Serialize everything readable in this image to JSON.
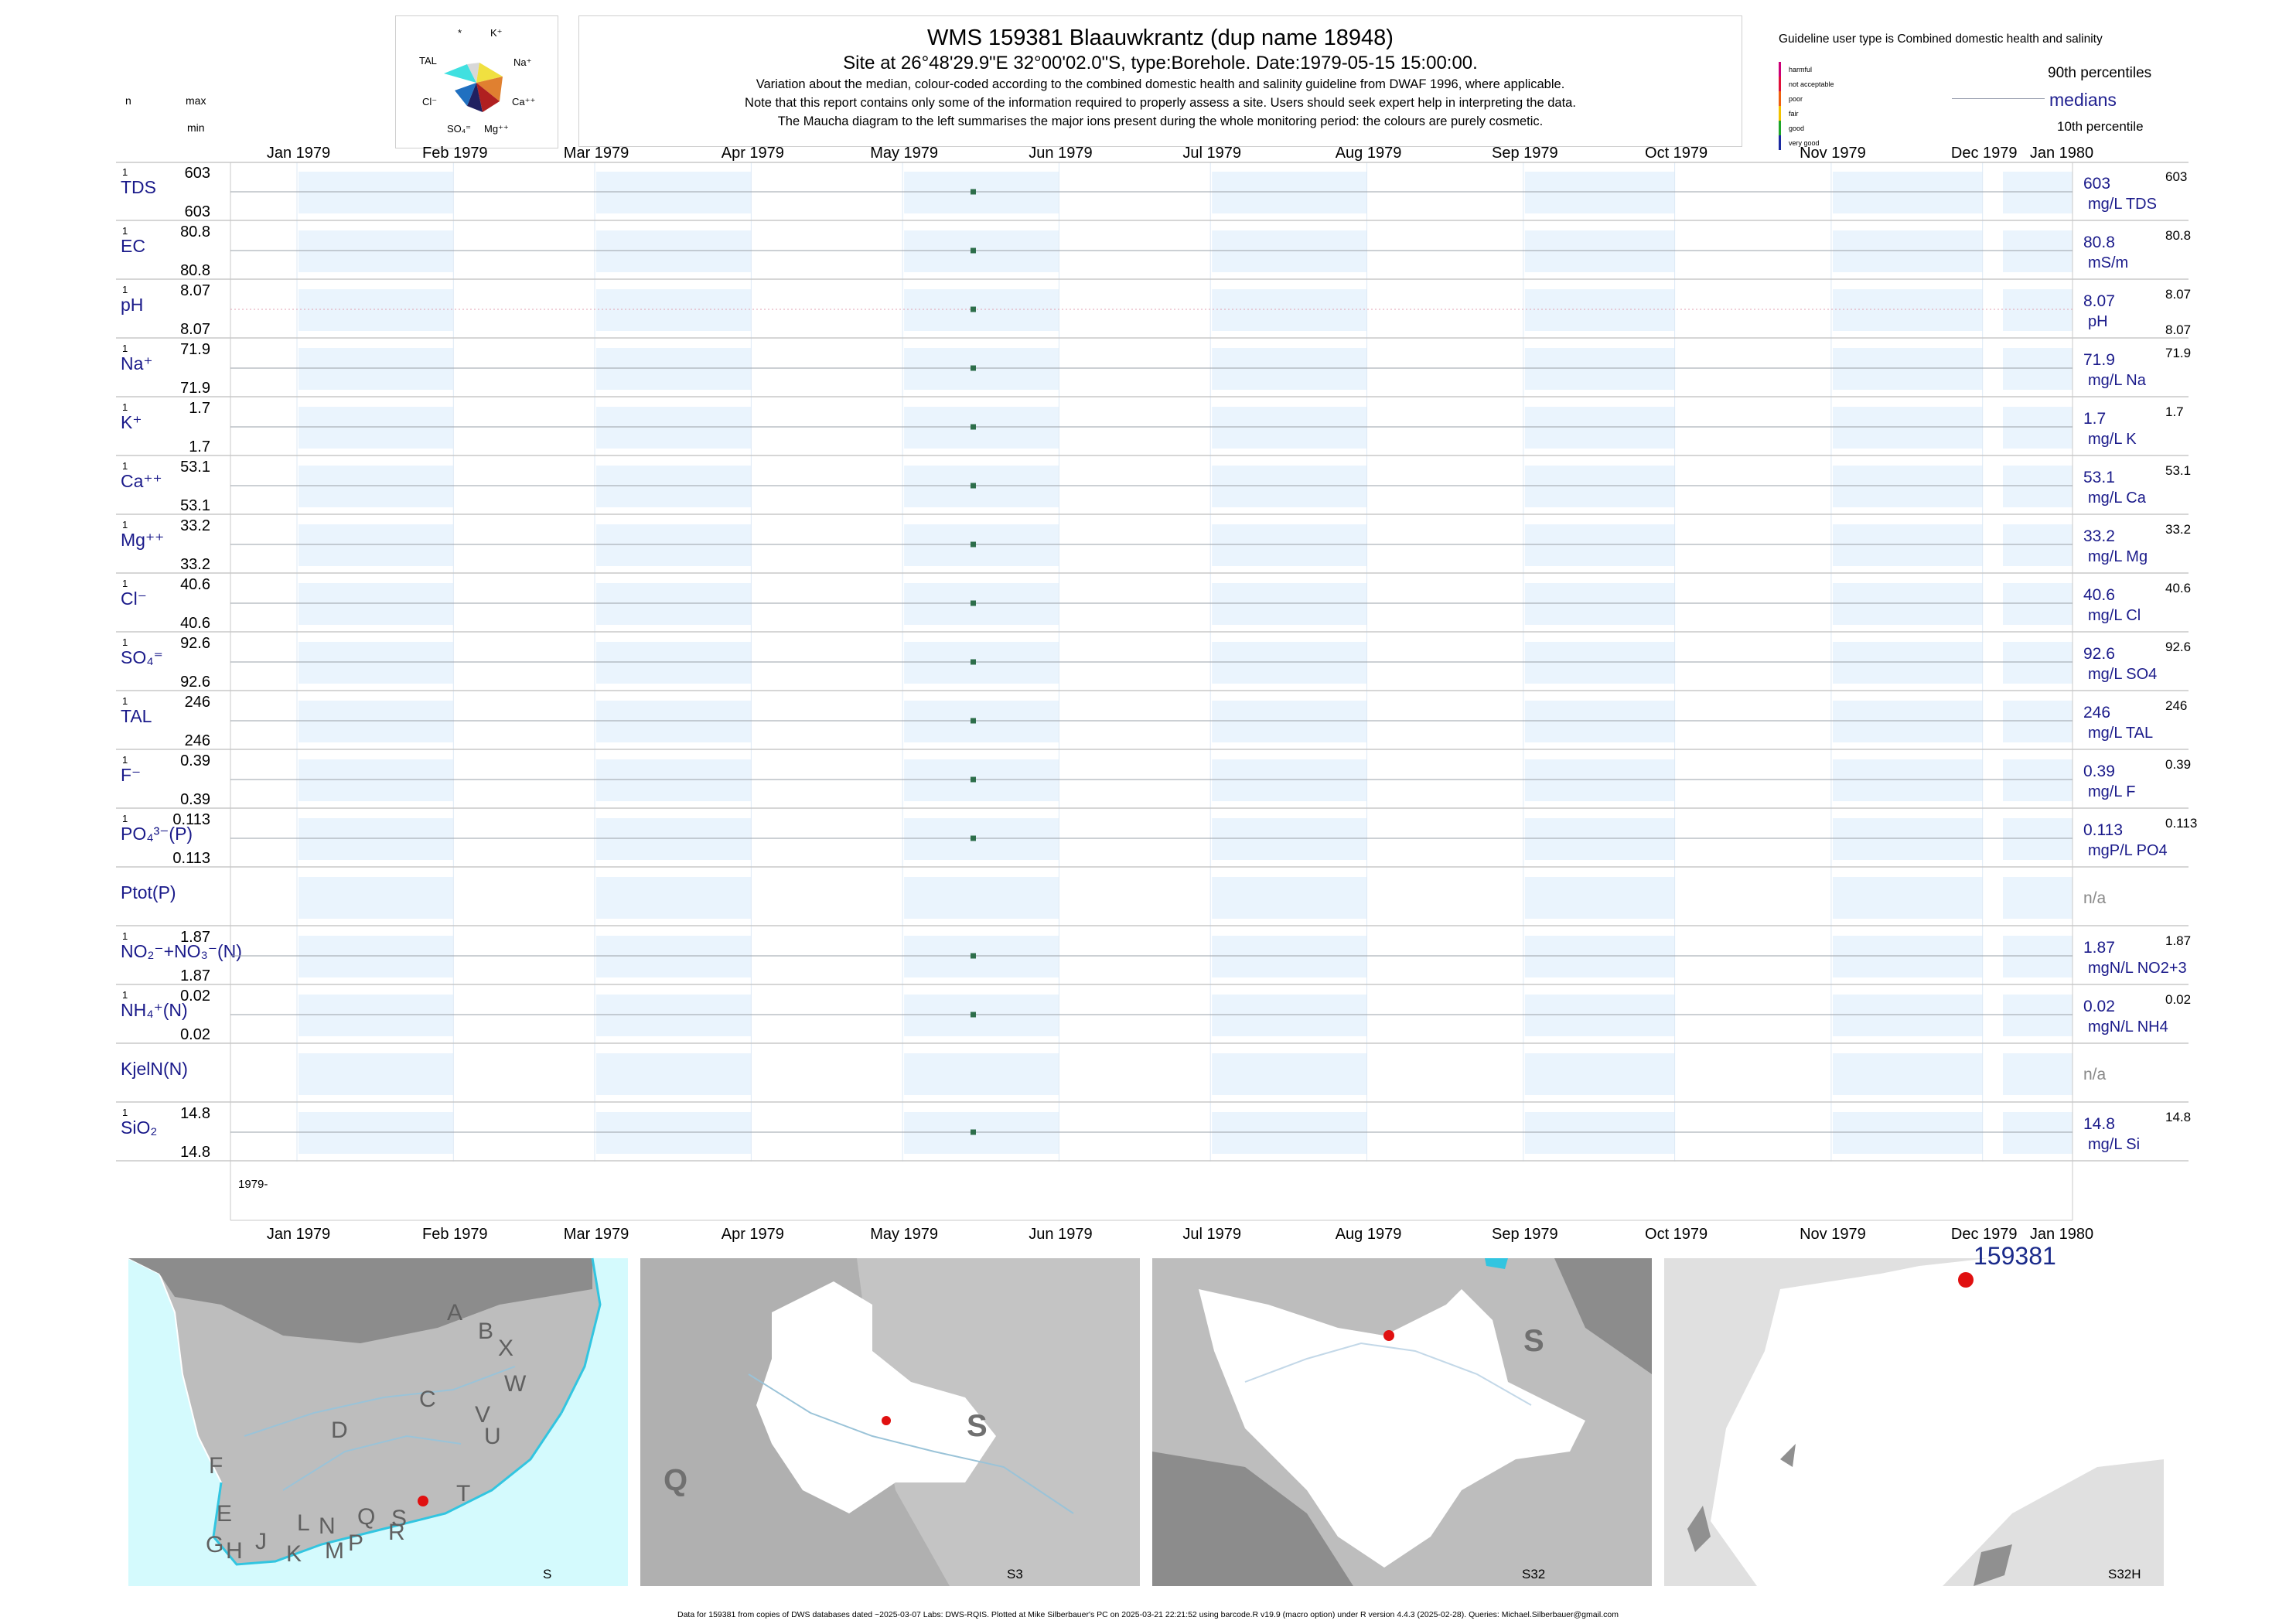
{
  "header": {
    "title": "WMS 159381  Blaauwkrantz (dup name 18948)",
    "subtitle": "Site at 26°48'29.9\"E 32°00'02.0\"S, type:Borehole. Date:1979-05-15 15:00:00.",
    "note_lines": [
      "Variation about the median,  colour-coded according to the combined domestic health and salinity guideline from DWAF 1996, where applicable.",
      "Note that this report contains only some of the information required to properly assess a site. Users should seek expert help in interpreting the data.",
      "The Maucha diagram to the left summarises the major ions present during the whole monitoring period: the colours are purely cosmetic."
    ]
  },
  "column_headers": {
    "n": "n",
    "max": "max",
    "min": "min"
  },
  "maucha": {
    "labels": {
      "star": "*",
      "k": "K⁺",
      "tal": "TAL",
      "na": "Na⁺",
      "cl": "Cl⁻",
      "ca": "Ca⁺⁺",
      "so4": "SO₄⁼",
      "mg": "Mg⁺⁺"
    },
    "colors": {
      "k": "#d8d8d8",
      "na": "#f0e040",
      "ca": "#e08030",
      "mg": "#b02020",
      "so4": "#202060",
      "cl": "#2070c0",
      "tal": "#40e0e0"
    }
  },
  "legend": {
    "guideline_text": "Guideline user type is Combined domestic health and salinity",
    "classes": [
      {
        "label": "harmful",
        "color": "#cc0077"
      },
      {
        "label": "not acceptable",
        "color": "#e0103a"
      },
      {
        "label": "poor",
        "color": "#ee6010"
      },
      {
        "label": "fair",
        "color": "#f2c200"
      },
      {
        "label": "good",
        "color": "#1ea52a"
      },
      {
        "label": "very good",
        "color": "#1a2aa0"
      }
    ],
    "p90": "90th percentiles",
    "medians": "medians",
    "p10": "10th percentile"
  },
  "axis": {
    "months": [
      "Jan 1979",
      "Feb 1979",
      "Mar 1979",
      "Apr 1979",
      "May 1979",
      "Jun 1979",
      "Jul 1979",
      "Aug 1979",
      "Sep 1979",
      "Oct 1979",
      "Nov 1979",
      "Dec 1979",
      "Jan 1980"
    ],
    "year_label": "1979-",
    "range": [
      "1979-01-01",
      "1980-01-01"
    ]
  },
  "chart_data": {
    "type": "scatter",
    "x_axis": "date",
    "xlim": [
      "1979-01-01",
      "1980-01-01"
    ],
    "sample_date": "1979-05-15",
    "grid": "monthly shaded bands",
    "series": [
      {
        "label": "TDS",
        "n": "1",
        "max": "603",
        "min": "603",
        "median": "603",
        "unit": "mg/L TDS",
        "p90": "603",
        "p10": "",
        "value": 603
      },
      {
        "label": "EC",
        "n": "1",
        "max": "80.8",
        "min": "80.8",
        "median": "80.8",
        "unit": "mS/m",
        "p90": "80.8",
        "p10": "",
        "value": 80.8
      },
      {
        "label": "pH",
        "n": "1",
        "max": "8.07",
        "min": "8.07",
        "median": "8.07",
        "unit": "pH",
        "p90": "8.07",
        "p10": "8.07",
        "value": 8.07
      },
      {
        "label": "Na⁺",
        "n": "1",
        "max": "71.9",
        "min": "71.9",
        "median": "71.9",
        "unit": "mg/L Na",
        "p90": "71.9",
        "p10": "",
        "value": 71.9
      },
      {
        "label": "K⁺",
        "n": "1",
        "max": "1.7",
        "min": "1.7",
        "median": "1.7",
        "unit": "mg/L K",
        "p90": "1.7",
        "p10": "",
        "value": 1.7
      },
      {
        "label": "Ca⁺⁺",
        "n": "1",
        "max": "53.1",
        "min": "53.1",
        "median": "53.1",
        "unit": "mg/L Ca",
        "p90": "53.1",
        "p10": "",
        "value": 53.1
      },
      {
        "label": "Mg⁺⁺",
        "n": "1",
        "max": "33.2",
        "min": "33.2",
        "median": "33.2",
        "unit": "mg/L Mg",
        "p90": "33.2",
        "p10": "",
        "value": 33.2
      },
      {
        "label": "Cl⁻",
        "n": "1",
        "max": "40.6",
        "min": "40.6",
        "median": "40.6",
        "unit": "mg/L Cl",
        "p90": "40.6",
        "p10": "",
        "value": 40.6
      },
      {
        "label": "SO₄⁼",
        "n": "1",
        "max": "92.6",
        "min": "92.6",
        "median": "92.6",
        "unit": "mg/L SO4",
        "p90": "92.6",
        "p10": "",
        "value": 92.6
      },
      {
        "label": "TAL",
        "n": "1",
        "max": "246",
        "min": "246",
        "median": "246",
        "unit": "mg/L TAL",
        "p90": "246",
        "p10": "",
        "value": 246
      },
      {
        "label": "F⁻",
        "n": "1",
        "max": "0.39",
        "min": "0.39",
        "median": "0.39",
        "unit": "mg/L F",
        "p90": "0.39",
        "p10": "",
        "value": 0.39
      },
      {
        "label": "PO₄³⁻(P)",
        "n": "1",
        "max": "0.113",
        "min": "0.113",
        "median": "0.113",
        "unit": "mgP/L PO4",
        "p90": "0.113",
        "p10": "",
        "value": 0.113
      },
      {
        "label": "Ptot(P)",
        "n": "",
        "max": "",
        "min": "",
        "median": "n/a",
        "unit": "",
        "p90": "",
        "p10": "",
        "value": null
      },
      {
        "label": "NO₂⁻+NO₃⁻(N)",
        "n": "1",
        "max": "1.87",
        "min": "1.87",
        "median": "1.87",
        "unit": "mgN/L NO2+3",
        "p90": "1.87",
        "p10": "",
        "value": 1.87
      },
      {
        "label": "NH₄⁺(N)",
        "n": "1",
        "max": "0.02",
        "min": "0.02",
        "median": "0.02",
        "unit": "mgN/L NH4",
        "p90": "0.02",
        "p10": "",
        "value": 0.02
      },
      {
        "label": "KjelN(N)",
        "n": "",
        "max": "",
        "min": "",
        "median": "n/a",
        "unit": "",
        "p90": "",
        "p10": "",
        "value": null
      },
      {
        "label": "SiO₂",
        "n": "1",
        "max": "14.8",
        "min": "14.8",
        "median": "14.8",
        "unit": "mg/L Si",
        "p90": "14.8",
        "p10": "",
        "value": 14.8
      }
    ]
  },
  "maps": [
    {
      "label": "S",
      "letters": [
        "A",
        "B",
        "X",
        "W",
        "C",
        "V",
        "U",
        "D",
        "T",
        "F",
        "E",
        "G",
        "H",
        "J",
        "K",
        "L",
        "N",
        "M",
        "P",
        "Q",
        "R",
        "S"
      ]
    },
    {
      "label": "S3",
      "letters": [
        "S",
        "Q"
      ]
    },
    {
      "label": "S32",
      "letters": [
        "S"
      ]
    },
    {
      "label": "S32H",
      "site_label": "159381"
    }
  ],
  "footer": "Data for 159381 from copies of DWS databases dated ~2025-03-07 Labs: DWS-RQIS. Plotted at Mike Silberbauer's PC on 2025-03-21 22:21:52 using barcode.R v19.9 (macro option) under R version 4.4.3 (2025-02-28). Queries: Michael.Silberbauer@gmail.com"
}
